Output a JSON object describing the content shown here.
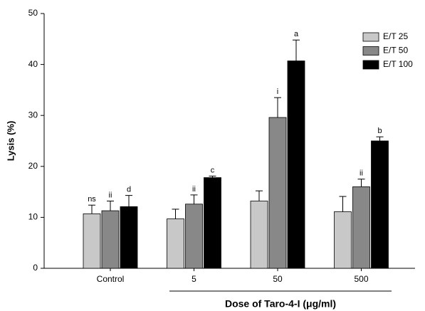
{
  "chart_data": {
    "type": "bar",
    "ylabel": "Lysis (%)",
    "xlabel": "Dose of Taro-4-I (μg/ml)",
    "categories": [
      "Control",
      "5",
      "50",
      "500"
    ],
    "series": [
      {
        "name": "E/T 25",
        "color": "#c8c8c8",
        "values": [
          10.7,
          9.7,
          13.2,
          11.1
        ],
        "errors": [
          1.7,
          1.9,
          2.0,
          3.0
        ],
        "labels": [
          "ns",
          null,
          null,
          null
        ]
      },
      {
        "name": "E/T 50",
        "color": "#888888",
        "values": [
          11.3,
          12.6,
          29.6,
          16.0
        ],
        "errors": [
          1.9,
          1.8,
          3.9,
          1.5
        ],
        "labels": [
          "ii",
          "ii",
          "i",
          "ii"
        ]
      },
      {
        "name": "E/T 100",
        "color": "#000000",
        "values": [
          12.1,
          17.8,
          40.7,
          25.0
        ],
        "errors": [
          2.2,
          0.3,
          4.1,
          0.8
        ],
        "labels": [
          "d",
          "c",
          "a",
          "b"
        ]
      }
    ],
    "ylim": [
      0,
      50
    ],
    "yticks": [
      0,
      10,
      20,
      30,
      40,
      50
    ],
    "legend": "upper-right"
  }
}
